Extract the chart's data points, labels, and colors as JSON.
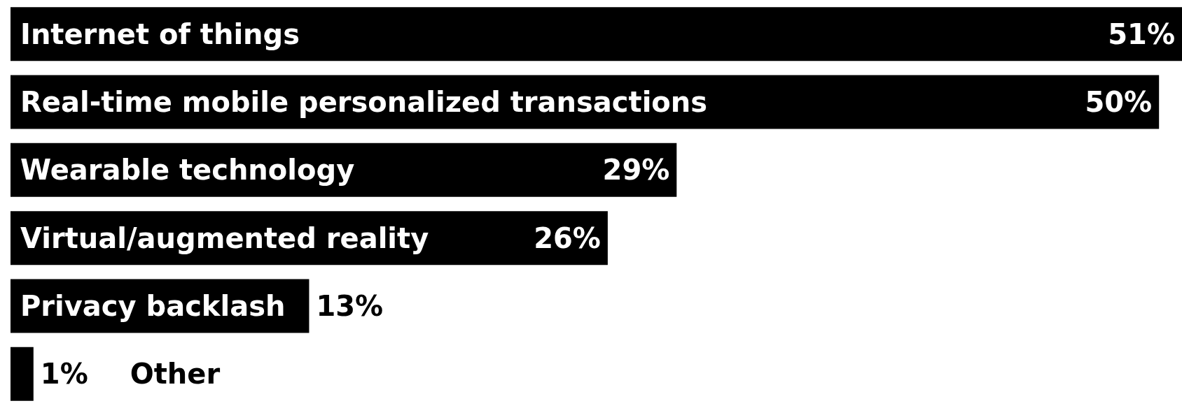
{
  "chart_data": {
    "type": "bar",
    "orientation": "horizontal",
    "categories": [
      "Internet of things",
      "Real-time mobile personalized transactions",
      "Wearable technology",
      "Virtual/augmented reality",
      "Privacy backlash",
      "Other"
    ],
    "values": [
      51,
      50,
      29,
      26,
      13,
      1
    ],
    "value_labels": [
      "51%",
      "50%",
      "29%",
      "26%",
      "13%",
      "1%"
    ],
    "color": "#000000"
  }
}
